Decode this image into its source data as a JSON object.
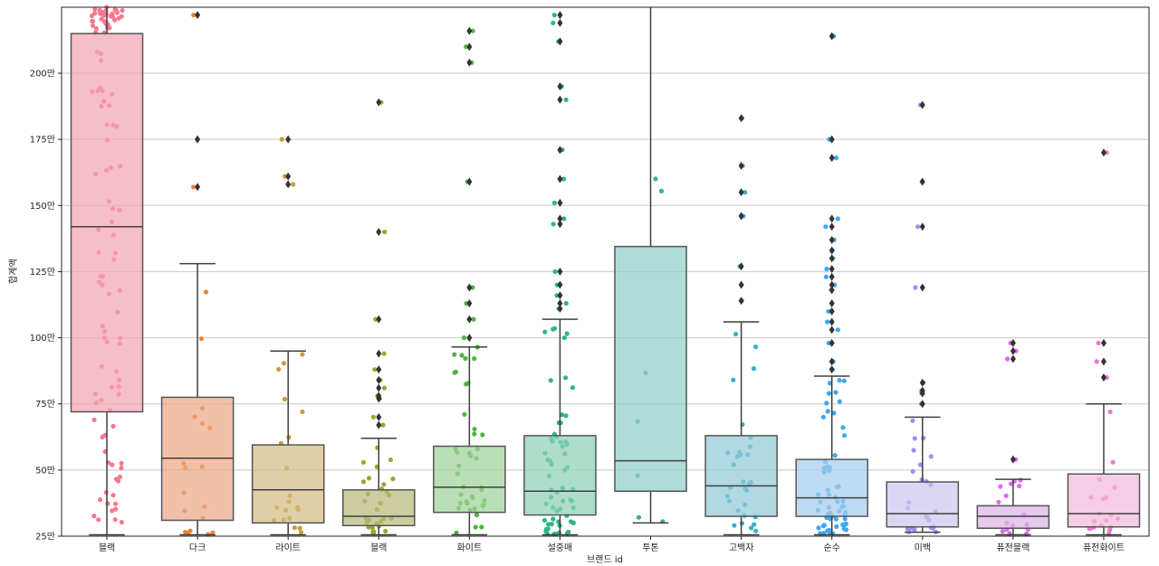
{
  "chart_data": {
    "type": "boxplot",
    "title": "",
    "xlabel": "브랜드 id",
    "ylabel": "합계액",
    "ylim": [
      250000,
      2260000
    ],
    "yticks": [
      250000,
      500000,
      750000,
      1000000,
      1250000,
      1500000,
      1750000,
      2000000
    ],
    "ytick_labels": [
      "25만",
      "50만",
      "75만",
      "100만",
      "125만",
      "150만",
      "175만",
      "200만"
    ],
    "grid": "horizontal",
    "categories": [
      "블랙",
      "다크",
      "라이트",
      "블랙",
      "화이트",
      "설중매",
      "투톤",
      "고백자",
      "순수",
      "미백",
      "퓨전블랙",
      "퓨전화이트"
    ],
    "boxes": [
      {
        "name": "블랙",
        "q1": 720000,
        "median": 1420000,
        "q3": 2150000,
        "whisker_low": 255000,
        "whisker_high": 2260000,
        "color": "#f2a5b3",
        "point_color": "#f7788e",
        "outliers": []
      },
      {
        "name": "다크",
        "q1": 310000,
        "median": 545000,
        "q3": 775000,
        "whisker_low": 255000,
        "whisker_high": 1280000,
        "color": "#eba786",
        "point_color": "#ee8436",
        "outliers": [
          1570000,
          1750000,
          2220000
        ]
      },
      {
        "name": "라이트",
        "q1": 300000,
        "median": 425000,
        "q3": 595000,
        "whisker_low": 255000,
        "whisker_high": 950000,
        "color": "#d4bb83",
        "point_color": "#c79d3c",
        "outliers": [
          1580000,
          1610000,
          1750000
        ]
      },
      {
        "name": "블랙",
        "q1": 290000,
        "median": 325000,
        "q3": 425000,
        "whisker_low": 255000,
        "whisker_high": 620000,
        "color": "#b8ba7c",
        "point_color": "#9da52d",
        "outliers": [
          670000,
          700000,
          770000,
          780000,
          810000,
          840000,
          880000,
          940000,
          1070000,
          1400000,
          1890000
        ]
      },
      {
        "name": "화이트",
        "q1": 340000,
        "median": 435000,
        "q3": 590000,
        "whisker_low": 255000,
        "whisker_high": 965000,
        "color": "#9fd39a",
        "point_color": "#4fb43e",
        "outliers": [
          1000000,
          1070000,
          1130000,
          1190000,
          1590000,
          2040000,
          2100000,
          2160000
        ]
      },
      {
        "name": "설중매",
        "q1": 330000,
        "median": 420000,
        "q3": 630000,
        "whisker_low": 255000,
        "whisker_high": 1070000,
        "color": "#8ed0b7",
        "point_color": "#2fb584",
        "outliers": [
          1110000,
          1130000,
          1160000,
          1200000,
          1250000,
          1430000,
          1450000,
          1510000,
          1600000,
          1710000,
          1900000,
          1950000,
          2120000,
          2190000,
          2220000
        ]
      },
      {
        "name": "투톤",
        "q1": 420000,
        "median": 535000,
        "q3": 1345000,
        "whisker_low": 300000,
        "whisker_high": 2260000,
        "color": "#92cfc9",
        "point_color": "#33b0a6",
        "outliers": []
      },
      {
        "name": "고백자",
        "q1": 325000,
        "median": 440000,
        "q3": 630000,
        "whisker_low": 255000,
        "whisker_high": 1060000,
        "color": "#93c9d8",
        "point_color": "#37b0c9",
        "outliers": [
          1140000,
          1200000,
          1270000,
          1460000,
          1550000,
          1650000,
          1830000
        ]
      },
      {
        "name": "순수",
        "q1": 325000,
        "median": 395000,
        "q3": 540000,
        "whisker_low": 255000,
        "whisker_high": 855000,
        "color": "#a6cdee",
        "point_color": "#3ea8ee",
        "outliers": [
          880000,
          910000,
          980000,
          1030000,
          1060000,
          1100000,
          1130000,
          1180000,
          1200000,
          1230000,
          1260000,
          1300000,
          1330000,
          1370000,
          1420000,
          1450000,
          1680000,
          1750000,
          2140000
        ]
      },
      {
        "name": "미백",
        "q1": 285000,
        "median": 335000,
        "q3": 455000,
        "whisker_low": 265000,
        "whisker_high": 700000,
        "color": "#ccc6ef",
        "point_color": "#a48df0",
        "outliers": [
          750000,
          790000,
          800000,
          830000,
          1190000,
          1420000,
          1590000,
          1880000
        ]
      },
      {
        "name": "퓨전블랙",
        "q1": 280000,
        "median": 325000,
        "q3": 365000,
        "whisker_low": 255000,
        "whisker_high": 465000,
        "color": "#ddb4e6",
        "point_color": "#e268f0",
        "outliers": [
          540000,
          920000,
          950000,
          980000
        ]
      },
      {
        "name": "퓨전화이트",
        "q1": 285000,
        "median": 335000,
        "q3": 485000,
        "whisker_low": 255000,
        "whisker_high": 750000,
        "color": "#f1bada",
        "point_color": "#f079c8",
        "outliers": [
          850000,
          910000,
          980000,
          1700000
        ]
      }
    ]
  }
}
